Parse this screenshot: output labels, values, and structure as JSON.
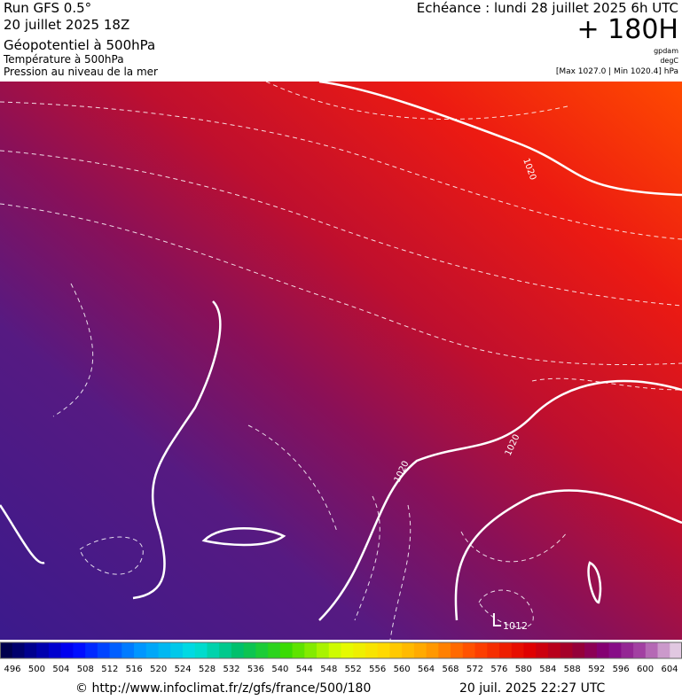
{
  "header": {
    "run": "Run GFS 0.5°",
    "run_date": "20 juillet 2025 18Z",
    "layer1": "Géopotentiel à 500hPa",
    "layer2": "Température à 500hPa",
    "layer3": "Pression au niveau de la mer",
    "valid": "Echéance : lundi 28 juillet 2025 6h UTC",
    "lead": "+ 180H",
    "unit1": "gpdam",
    "unit2": "degC",
    "range": "[Max 1027.0 | Min 1020.4] hPa"
  },
  "map": {
    "isobar_labels": [
      "1020",
      "1020",
      "1020"
    ],
    "low": {
      "symbol": "L",
      "value": "1012"
    }
  },
  "colorbar": {
    "labels": [
      496,
      500,
      504,
      508,
      512,
      516,
      520,
      524,
      528,
      532,
      536,
      540,
      544,
      548,
      552,
      556,
      560,
      564,
      568,
      572,
      576,
      580,
      584,
      588,
      592,
      596,
      600,
      604
    ]
  },
  "footer": {
    "source": "© http://www.infoclimat.fr/z/gfs/france/500/180",
    "generated": "20 juil. 2025 22:27 UTC"
  }
}
